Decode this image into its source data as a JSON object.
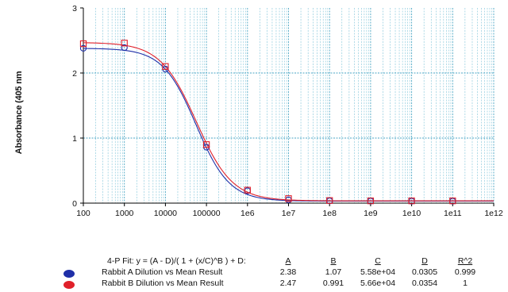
{
  "chart_data": {
    "type": "scatter",
    "title": "",
    "ylabel": "Absorbance (405 nm",
    "xlabel": "",
    "x_scale": "log",
    "xlim": [
      100,
      1000000000000
    ],
    "ylim": [
      0,
      3
    ],
    "grid": true,
    "x_tick_labels": [
      "100",
      "1000",
      "10000",
      "100000",
      "1e6",
      "1e7",
      "1e8",
      "1e9",
      "1e10",
      "1e11",
      "1e12"
    ],
    "y_tick_labels": [
      "0",
      "1",
      "2",
      "3"
    ],
    "series": [
      {
        "name": "Rabbit A Dilution vs Mean  Result",
        "color": "#1f2fa8",
        "marker": "circle",
        "x": [
          100,
          1000,
          10000,
          100000,
          1000000,
          10000000,
          100000000,
          1000000000,
          10000000000,
          100000000000
        ],
        "y": [
          2.38,
          2.39,
          2.06,
          0.86,
          0.19,
          0.05,
          0.035,
          0.031,
          0.03,
          0.03
        ],
        "fit": {
          "A": 2.38,
          "B": 1.07,
          "C": 55800,
          "D": 0.0305
        }
      },
      {
        "name": "Rabbit B Dilution vs Mean  Result",
        "color": "#e0202a",
        "marker": "square",
        "x": [
          100,
          1000,
          10000,
          100000,
          1000000,
          10000000,
          100000000,
          1000000000,
          10000000000,
          100000000000
        ],
        "y": [
          2.45,
          2.46,
          2.1,
          0.9,
          0.2,
          0.07,
          0.04,
          0.035,
          0.035,
          0.035
        ],
        "fit": {
          "A": 2.47,
          "B": 0.991,
          "C": 56600,
          "D": 0.0354
        }
      }
    ]
  },
  "fit_table": {
    "equation": "4-P Fit: y = (A - D)/( 1 + (x/C)^B ) + D:",
    "headers": [
      "A",
      "B",
      "C",
      "D",
      "R^2"
    ],
    "rows": [
      {
        "name": "Rabbit A Dilution vs Mean  Result",
        "color": "#1f2fa8",
        "values": [
          "2.38",
          "1.07",
          "5.58e+04",
          "0.0305",
          "0.999"
        ]
      },
      {
        "name": "Rabbit B Dilution vs Mean  Result",
        "color": "#e0202a",
        "values": [
          "2.47",
          "0.991",
          "5.66e+04",
          "0.0354",
          "1"
        ]
      }
    ]
  }
}
